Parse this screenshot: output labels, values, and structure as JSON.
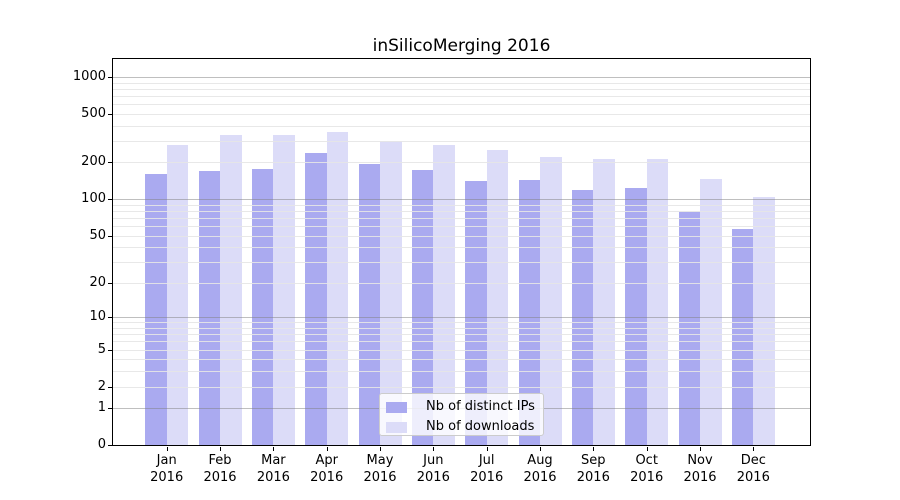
{
  "chart_data": {
    "type": "bar",
    "title": "inSilicoMerging 2016",
    "scale": "log1p",
    "ylim": [
      0,
      1400
    ],
    "yticks": [
      0,
      1,
      2,
      5,
      10,
      20,
      50,
      100,
      200,
      500,
      1000
    ],
    "grid_major": [
      1,
      10,
      100,
      1000
    ],
    "grid_minor": [
      2,
      3,
      4,
      5,
      6,
      7,
      8,
      9,
      20,
      30,
      40,
      50,
      60,
      70,
      80,
      90,
      200,
      300,
      400,
      500,
      600,
      700,
      800,
      900
    ],
    "categories": [
      "Jan",
      "Feb",
      "Mar",
      "Apr",
      "May",
      "Jun",
      "Jul",
      "Aug",
      "Sep",
      "Oct",
      "Nov",
      "Dec"
    ],
    "year": "2016",
    "series": [
      {
        "name": "Nb of distinct IPs",
        "color": "#aaaaf0",
        "values": [
          162,
          170,
          178,
          239,
          196,
          172,
          142,
          145,
          120,
          124,
          79,
          57
        ]
      },
      {
        "name": "Nb of downloads",
        "color": "#dcdcf8",
        "values": [
          280,
          335,
          338,
          357,
          301,
          280,
          254,
          220,
          214,
          214,
          147,
          104
        ]
      }
    ],
    "legend_position": "lower center",
    "colors": {
      "background": "#ffffff",
      "axis": "#000000",
      "grid_major": "#808080",
      "grid_minor": "#e6e6e6",
      "legend_border": "#cccccc"
    }
  }
}
